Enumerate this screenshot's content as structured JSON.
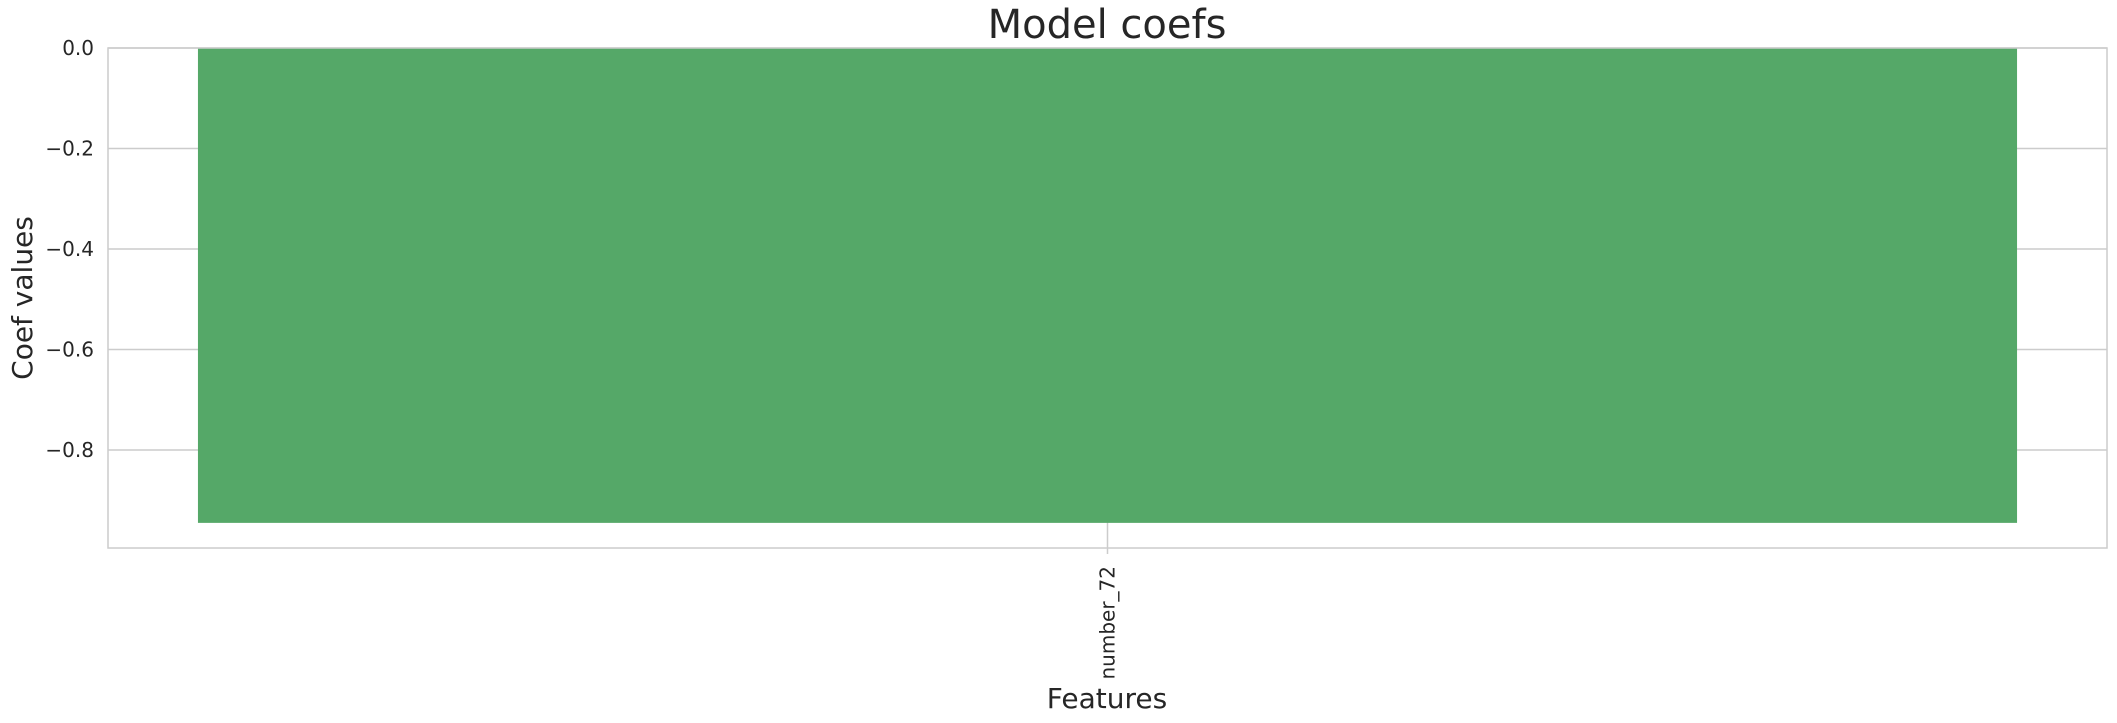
{
  "chart_data": {
    "type": "bar",
    "title": "Model coefs",
    "xlabel": "Features",
    "ylabel": "Coef values",
    "categories": [
      "number_72"
    ],
    "values": [
      -0.945
    ],
    "ylim": [
      -0.995,
      0.0
    ],
    "yticks": [
      0.0,
      -0.2,
      -0.4,
      -0.6,
      -0.8
    ],
    "ytick_labels": [
      "0.0",
      "−0.2",
      "−0.4",
      "−0.6",
      "−0.8"
    ],
    "grid": true,
    "legend": "none",
    "bar_color": "#55a868",
    "grid_color": "#cccccc",
    "spine_color": "#cccccc"
  }
}
